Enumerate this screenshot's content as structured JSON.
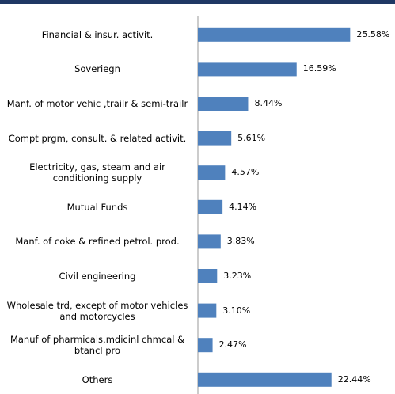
{
  "chart_data": {
    "type": "barh",
    "categories": [
      "Financial & insur. activit.",
      "Soveriegn",
      "Manf. of motor vehic ,trailr & semi-trailr",
      "Compt prgm, consult. & related activit.",
      "Electricity, gas, steam and air conditioning supply",
      "Mutual Funds",
      "Manf. of coke & refined petrol. prod.",
      "Civil engineering",
      "Wholesale trd, except of motor vehicles and motorcycles",
      "Manuf of pharmicals,mdicinl chmcal & btancl pro",
      "Others"
    ],
    "values": [
      25.58,
      16.59,
      8.44,
      5.61,
      4.57,
      4.14,
      3.83,
      3.23,
      3.1,
      2.47,
      22.44
    ],
    "value_labels": [
      "25.58%",
      "16.59%",
      "8.44%",
      "5.61%",
      "4.57%",
      "4.14%",
      "3.83%",
      "3.23%",
      "3.10%",
      "2.47%",
      "22.44%"
    ],
    "color": "#4f81bd",
    "xlim": [
      0,
      26.6
    ]
  }
}
